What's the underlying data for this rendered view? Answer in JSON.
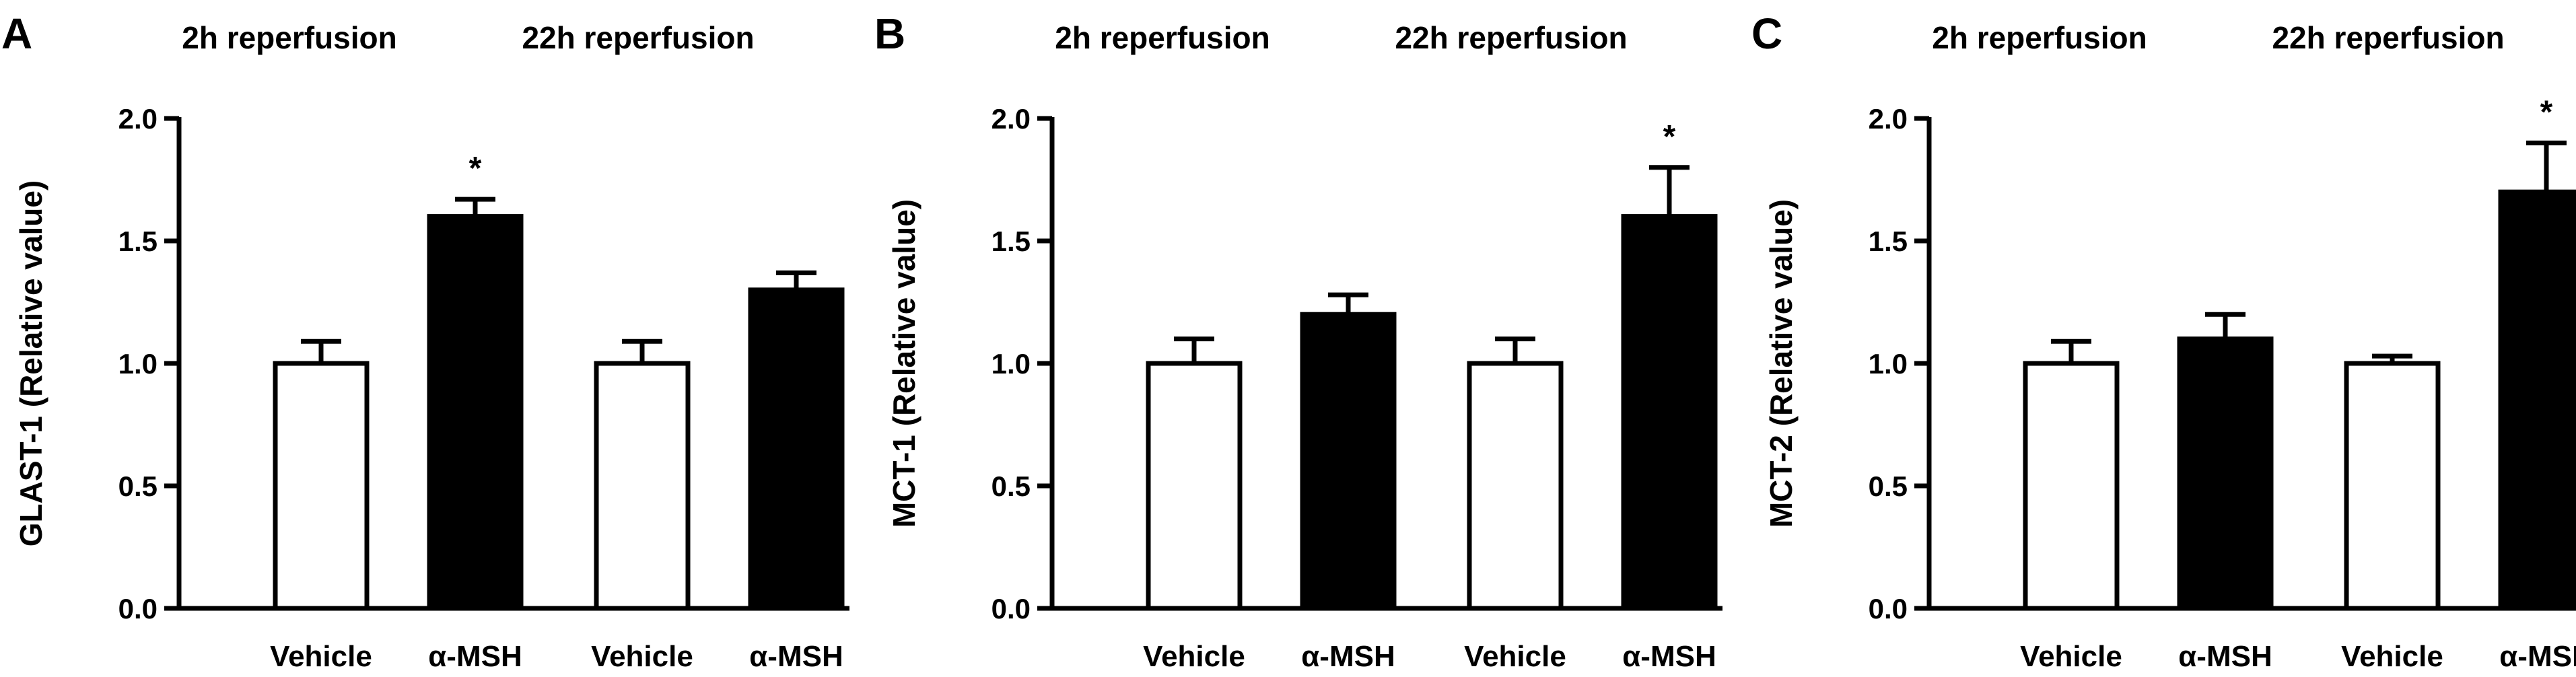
{
  "chart_data": [
    {
      "type": "bar",
      "panel": "A",
      "ylabel": "GLAST-1 (Relative value)",
      "ylim": [
        0,
        2.0
      ],
      "yticks": [
        "0.0",
        "0.5",
        "1.0",
        "1.5",
        "2.0"
      ],
      "yticks_values": [
        0,
        0.5,
        1.0,
        1.5,
        2.0
      ],
      "groups": [
        "2h reperfusion",
        "22h reperfusion"
      ],
      "categories": [
        "Vehicle",
        "α-MSH",
        "Vehicle",
        "α-MSH"
      ],
      "values": [
        1.0,
        1.6,
        1.0,
        1.3
      ],
      "errors": [
        0.09,
        0.07,
        0.09,
        0.07
      ],
      "bar_colors": [
        "#ffffff",
        "#000000",
        "#ffffff",
        "#000000"
      ],
      "significance": [
        "",
        "*",
        "",
        ""
      ],
      "grid": false,
      "legend": "none"
    },
    {
      "type": "bar",
      "panel": "B",
      "ylabel": "MCT-1 (Relative value)",
      "ylim": [
        0,
        2.0
      ],
      "yticks": [
        "0.0",
        "0.5",
        "1.0",
        "1.5",
        "2.0"
      ],
      "yticks_values": [
        0,
        0.5,
        1.0,
        1.5,
        2.0
      ],
      "groups": [
        "2h reperfusion",
        "22h reperfusion"
      ],
      "categories": [
        "Vehicle",
        "α-MSH",
        "Vehicle",
        "α-MSH"
      ],
      "values": [
        1.0,
        1.2,
        1.0,
        1.6
      ],
      "errors": [
        0.1,
        0.08,
        0.1,
        0.2
      ],
      "bar_colors": [
        "#ffffff",
        "#000000",
        "#ffffff",
        "#000000"
      ],
      "significance": [
        "",
        "",
        "",
        "*"
      ],
      "grid": false,
      "legend": "none"
    },
    {
      "type": "bar",
      "panel": "C",
      "ylabel": "MCT-2 (Relative value)",
      "ylim": [
        0,
        2.0
      ],
      "yticks": [
        "0.0",
        "0.5",
        "1.0",
        "1.5",
        "2.0"
      ],
      "yticks_values": [
        0,
        0.5,
        1.0,
        1.5,
        2.0
      ],
      "groups": [
        "2h reperfusion",
        "22h reperfusion"
      ],
      "categories": [
        "Vehicle",
        "α-MSH",
        "Vehicle",
        "α-MSH"
      ],
      "values": [
        1.0,
        1.1,
        1.0,
        1.7
      ],
      "errors": [
        0.09,
        0.1,
        0.03,
        0.2
      ],
      "bar_colors": [
        "#ffffff",
        "#000000",
        "#ffffff",
        "#000000"
      ],
      "significance": [
        "",
        "",
        "",
        "*"
      ],
      "grid": false,
      "legend": "none"
    }
  ]
}
